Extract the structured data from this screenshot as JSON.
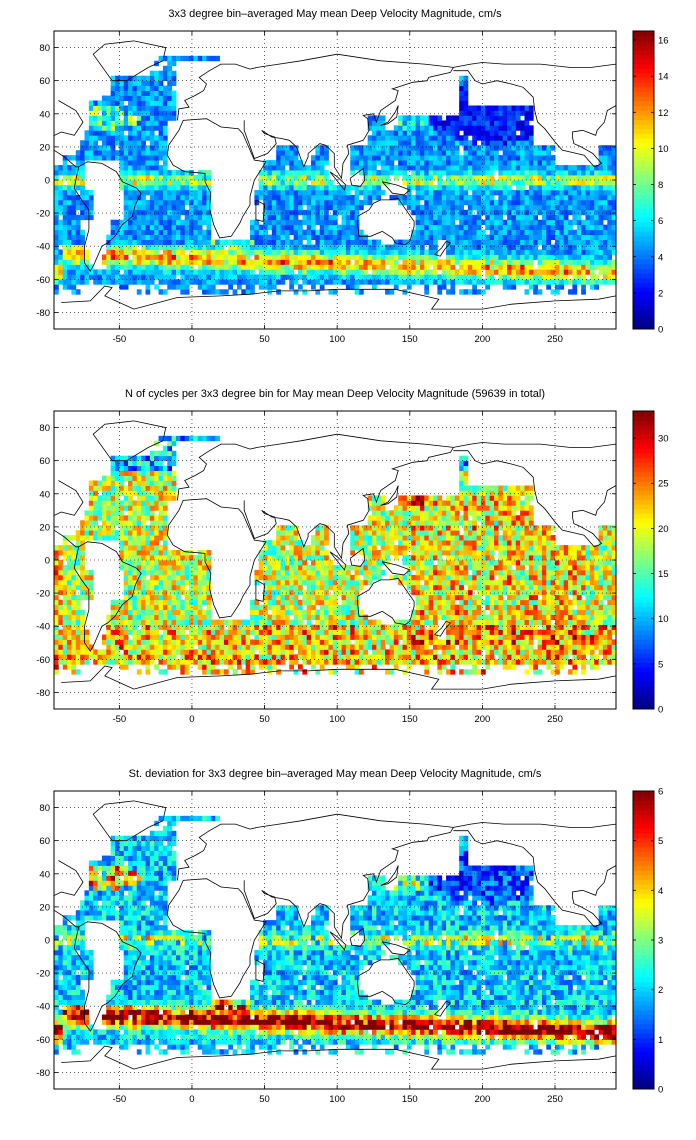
{
  "chart_data": [
    {
      "type": "heatmap",
      "title": "3x3 degree bin–averaged May mean Deep Velocity Magnitude, cm/s",
      "xlabel": "",
      "ylabel": "",
      "xlim": [
        -95,
        292
      ],
      "ylim": [
        -90,
        90
      ],
      "x_ticks": [
        -50,
        0,
        50,
        100,
        150,
        200,
        250
      ],
      "y_ticks": [
        80,
        60,
        40,
        20,
        0,
        -20,
        -40,
        -60,
        -80
      ],
      "grid": true,
      "colorbar": {
        "min": 0,
        "max": 16.5,
        "ticks": [
          0,
          2,
          4,
          6,
          8,
          10,
          12,
          14,
          16
        ]
      },
      "bin_size_degrees": 3,
      "field": "velocity"
    },
    {
      "type": "heatmap",
      "title": "N of cycles per 3x3 degree bin for May mean Deep Velocity Magnitude (59639 in total)",
      "xlabel": "",
      "ylabel": "",
      "xlim": [
        -95,
        292
      ],
      "ylim": [
        -90,
        90
      ],
      "x_ticks": [
        -50,
        0,
        50,
        100,
        150,
        200,
        250
      ],
      "y_ticks": [
        80,
        60,
        40,
        20,
        0,
        -20,
        -40,
        -60,
        -80
      ],
      "grid": true,
      "colorbar": {
        "min": 0,
        "max": 33,
        "ticks": [
          0,
          5,
          10,
          15,
          20,
          25,
          30
        ]
      },
      "bin_size_degrees": 3,
      "field": "count",
      "total_cycles": 59639
    },
    {
      "type": "heatmap",
      "title": "St. deviation for 3x3 degree bin–averaged May mean Deep Velocity Magnitude, cm/s",
      "xlabel": "",
      "ylabel": "",
      "xlim": [
        -95,
        292
      ],
      "ylim": [
        -90,
        90
      ],
      "x_ticks": [
        -50,
        0,
        50,
        100,
        150,
        200,
        250
      ],
      "y_ticks": [
        80,
        60,
        40,
        20,
        0,
        -20,
        -40,
        -60,
        -80
      ],
      "grid": true,
      "colorbar": {
        "min": 0,
        "max": 6,
        "ticks": [
          0,
          1,
          2,
          3,
          4,
          5,
          6
        ]
      },
      "bin_size_degrees": 3,
      "field": "stdev"
    }
  ],
  "colors": {
    "colormap": "jet",
    "land": "#ffffff",
    "coastline": "#000000",
    "grid": "#000000"
  }
}
